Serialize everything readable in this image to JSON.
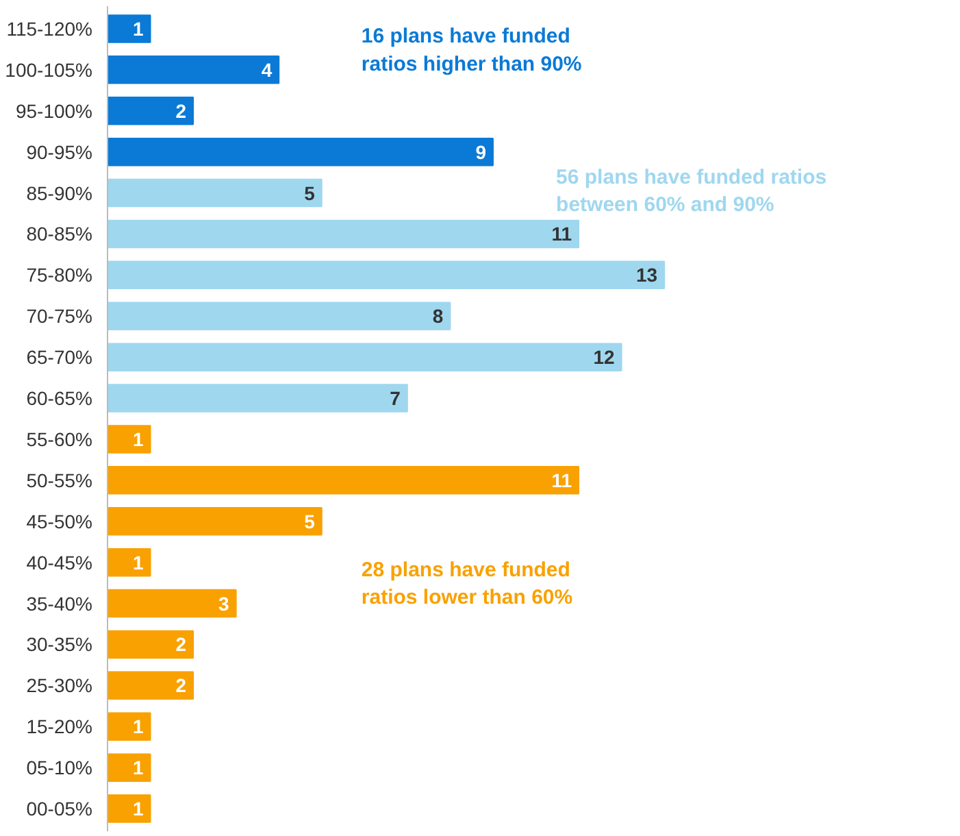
{
  "chart_data": {
    "type": "bar",
    "orientation": "horizontal",
    "data_labels": true,
    "grid": false,
    "tick_labels": "y",
    "categories": [
      "115-120%",
      "100-105%",
      "95-100%",
      "90-95%",
      "85-90%",
      "80-85%",
      "75-80%",
      "70-75%",
      "65-70%",
      "60-65%",
      "55-60%",
      "50-55%",
      "45-50%",
      "40-45%",
      "35-40%",
      "30-35%",
      "25-30%",
      "15-20%",
      "05-10%",
      "00-05%"
    ],
    "series": [
      {
        "color": "#0a7ad6",
        "values": [
          1,
          4,
          2,
          9,
          null,
          null,
          null,
          null,
          null,
          null,
          null,
          null,
          null,
          null,
          null,
          null,
          null,
          null,
          null,
          null
        ]
      },
      {
        "color": "#9fd7ef",
        "values": [
          null,
          null,
          null,
          null,
          5,
          11,
          13,
          8,
          12,
          7,
          null,
          null,
          null,
          null,
          null,
          null,
          null,
          null,
          null,
          null
        ]
      },
      {
        "color": "#f9a100",
        "values": [
          null,
          null,
          null,
          null,
          null,
          null,
          null,
          null,
          null,
          null,
          1,
          11,
          5,
          1,
          3,
          2,
          2,
          1,
          1,
          1
        ]
      }
    ],
    "annotations": [
      "16 plans have funded\nratios higher than 90%",
      "56 plans have funded ratios\nbetween 60% and 90%",
      "28 plans have funded\nratios lower than 60%"
    ]
  }
}
